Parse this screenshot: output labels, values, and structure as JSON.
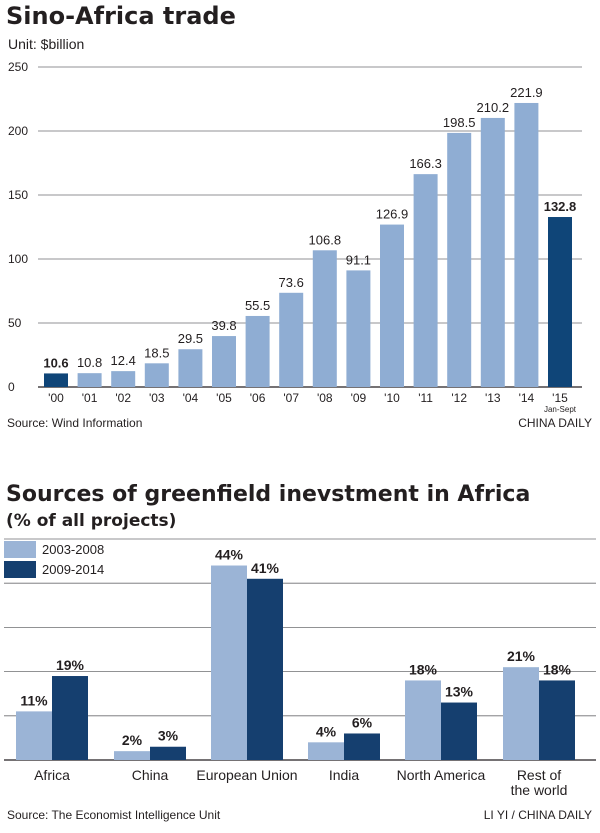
{
  "chart1": {
    "title": "Sino-Africa trade",
    "unit": "Unit: $billion",
    "source": "Source: Wind Information",
    "credit": "CHINA DAILY",
    "note_last": "Jan-Sept"
  },
  "chart2": {
    "title": "Sources of greenfield inevstment in Africa",
    "subtitle": "(% of all projects)",
    "source": "Source: The Economist Intelligence Unit",
    "credit": "LI YI / CHINA DAILY"
  },
  "colors": {
    "light": "#8fadd3",
    "dark": "#0f4578",
    "lightAlt": "#9bb4d6",
    "darkAlt": "#153f6f",
    "grid": "#231f20"
  },
  "chart_data": [
    {
      "type": "bar",
      "title": "Sino-Africa trade",
      "ylabel": "Unit: $billion",
      "categories": [
        "'00",
        "'01",
        "'02",
        "'03",
        "'04",
        "'05",
        "'06",
        "'07",
        "'08",
        "'09",
        "'10",
        "'11",
        "'12",
        "'13",
        "'14",
        "'15"
      ],
      "values": [
        10.6,
        10.8,
        12.4,
        18.5,
        29.5,
        39.8,
        55.5,
        73.6,
        106.8,
        91.1,
        126.9,
        166.3,
        198.5,
        210.2,
        221.9,
        132.8
      ],
      "labels": [
        "10.6",
        "10.8",
        "12.4",
        "18.5",
        "29.5",
        "39.8",
        "55.5",
        "73.6",
        "106.8",
        "91.1",
        "126.9",
        "166.3",
        "198.5",
        "210.2",
        "221.9",
        "132.8"
      ],
      "highlight": [
        0,
        15
      ],
      "yticks": [
        0,
        50,
        100,
        150,
        200,
        250
      ],
      "ylim": [
        0,
        250
      ],
      "grid": true
    },
    {
      "type": "bar",
      "title": "Sources of greenfield inevstment in Africa",
      "subtitle": "(% of all projects)",
      "categories": [
        "Africa",
        "China",
        "European Union",
        "India",
        "North America",
        "Rest of\nthe world"
      ],
      "series": [
        {
          "name": "2003-2008",
          "values": [
            11,
            2,
            44,
            4,
            18,
            21
          ],
          "labels": [
            "11%",
            "2%",
            "44%",
            "4%",
            "18%",
            "21%"
          ]
        },
        {
          "name": "2009-2014",
          "values": [
            19,
            3,
            41,
            6,
            13,
            18
          ],
          "labels": [
            "19%",
            "3%",
            "41%",
            "6%",
            "13%",
            "18%"
          ]
        }
      ],
      "ylim": [
        0,
        50
      ],
      "grid": true,
      "legend": "top-left"
    }
  ]
}
